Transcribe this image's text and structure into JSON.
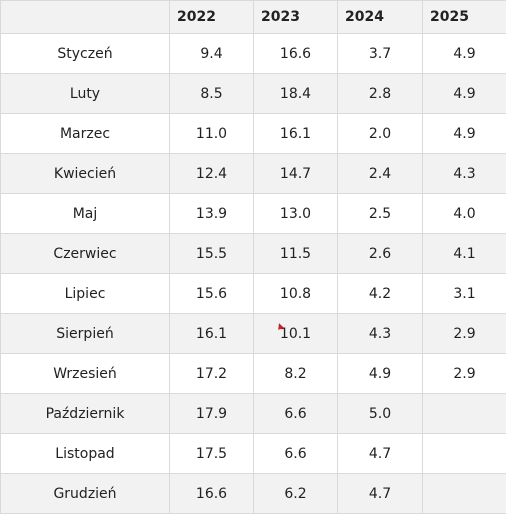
{
  "table": {
    "headers": [
      "",
      "2022",
      "2023",
      "2024",
      "2025"
    ],
    "rows": [
      {
        "month": "Styczeń",
        "values": [
          "9.4",
          "16.6",
          "3.7",
          "4.9"
        ]
      },
      {
        "month": "Luty",
        "values": [
          "8.5",
          "18.4",
          "2.8",
          "4.9"
        ]
      },
      {
        "month": "Marzec",
        "values": [
          "11.0",
          "16.1",
          "2.0",
          "4.9"
        ]
      },
      {
        "month": "Kwiecień",
        "values": [
          "12.4",
          "14.7",
          "2.4",
          "4.3"
        ]
      },
      {
        "month": "Maj",
        "values": [
          "13.9",
          "13.0",
          "2.5",
          "4.0"
        ]
      },
      {
        "month": "Czerwiec",
        "values": [
          "15.5",
          "11.5",
          "2.6",
          "4.1"
        ]
      },
      {
        "month": "Lipiec",
        "values": [
          "15.6",
          "10.8",
          "4.2",
          "3.1"
        ]
      },
      {
        "month": "Sierpień",
        "values": [
          "16.1",
          "10.1",
          "4.3",
          "2.9"
        ]
      },
      {
        "month": "Wrzesień",
        "values": [
          "17.2",
          "8.2",
          "4.9",
          "2.9"
        ]
      },
      {
        "month": "Październik",
        "values": [
          "17.9",
          "6.6",
          "5.0",
          ""
        ]
      },
      {
        "month": "Listopad",
        "values": [
          "17.5",
          "6.6",
          "4.7",
          ""
        ]
      },
      {
        "month": "Grudzień",
        "values": [
          "16.6",
          "6.2",
          "4.7",
          ""
        ]
      }
    ]
  },
  "colors": {
    "header_bg": "#f2f2f2",
    "stripe_bg": "#f2f2f2",
    "border": "#d9d9d9",
    "marker": "#cc1f1f"
  }
}
